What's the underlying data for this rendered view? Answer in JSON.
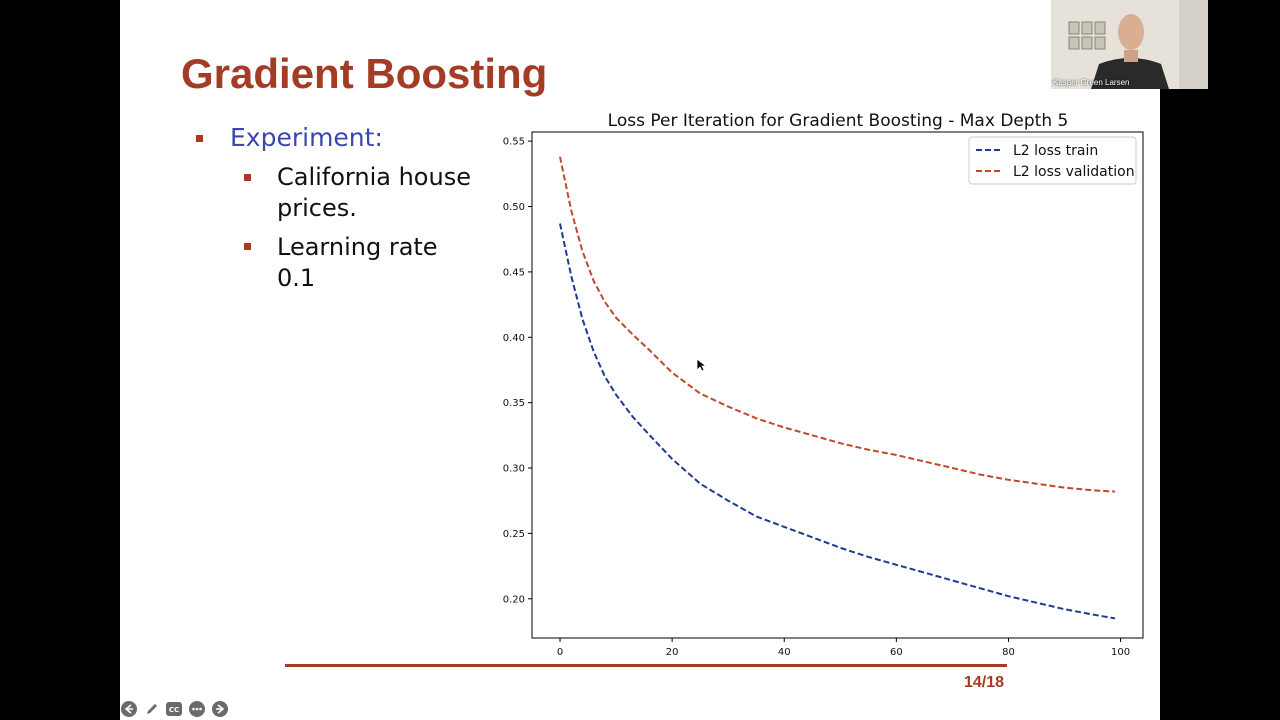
{
  "slide": {
    "title": "Gradient Boosting",
    "bullets": [
      {
        "text": "Experiment:"
      },
      {
        "text": "California house",
        "text2": "prices."
      },
      {
        "text": "Learning rate",
        "text2": "0.1"
      }
    ],
    "page_number": "14/18"
  },
  "webcam": {
    "participant_name": "Kasper Green Larsen"
  },
  "controls": [
    {
      "icon": "arrow-left-icon"
    },
    {
      "icon": "pencil-icon"
    },
    {
      "icon": "cc-icon",
      "label": "CC"
    },
    {
      "icon": "more-icon"
    },
    {
      "icon": "arrow-right-icon"
    }
  ],
  "colors": {
    "accent": "#a43b24",
    "experiment_text": "#3c46b0",
    "train_line": "#1f3a93",
    "validation_line": "#c0492b"
  },
  "chart_data": {
    "type": "line",
    "title": "Loss Per Iteration for Gradient Boosting - Max Depth 5",
    "xlabel": "",
    "ylabel": "",
    "xlim": [
      -5,
      104
    ],
    "ylim": [
      0.17,
      0.557
    ],
    "x_ticks": [
      0,
      20,
      40,
      60,
      80,
      100
    ],
    "y_ticks": [
      0.2,
      0.25,
      0.3,
      0.35,
      0.4,
      0.45,
      0.5,
      0.55
    ],
    "x_tick_labels": [
      "0",
      "20",
      "40",
      "60",
      "80",
      "100"
    ],
    "y_tick_labels": [
      "0.20",
      "0.25",
      "0.30",
      "0.35",
      "0.40",
      "0.45",
      "0.50",
      "0.55"
    ],
    "grid": false,
    "legend_position": "top-right",
    "x": [
      0,
      2,
      4,
      6,
      8,
      10,
      13,
      16,
      20,
      25,
      30,
      35,
      40,
      45,
      50,
      55,
      60,
      65,
      70,
      75,
      80,
      85,
      90,
      95,
      99
    ],
    "series": [
      {
        "name": "L2 loss train",
        "style": "dashed",
        "values": [
          0.487,
          0.447,
          0.414,
          0.389,
          0.37,
          0.356,
          0.339,
          0.325,
          0.307,
          0.288,
          0.275,
          0.263,
          0.255,
          0.247,
          0.239,
          0.232,
          0.226,
          0.22,
          0.214,
          0.208,
          0.202,
          0.197,
          0.192,
          0.188,
          0.185
        ]
      },
      {
        "name": "L2 loss validation",
        "style": "dashed",
        "values": [
          0.538,
          0.497,
          0.466,
          0.443,
          0.427,
          0.415,
          0.402,
          0.39,
          0.373,
          0.357,
          0.347,
          0.338,
          0.331,
          0.325,
          0.319,
          0.314,
          0.31,
          0.305,
          0.3,
          0.295,
          0.291,
          0.288,
          0.285,
          0.283,
          0.282
        ]
      }
    ]
  }
}
